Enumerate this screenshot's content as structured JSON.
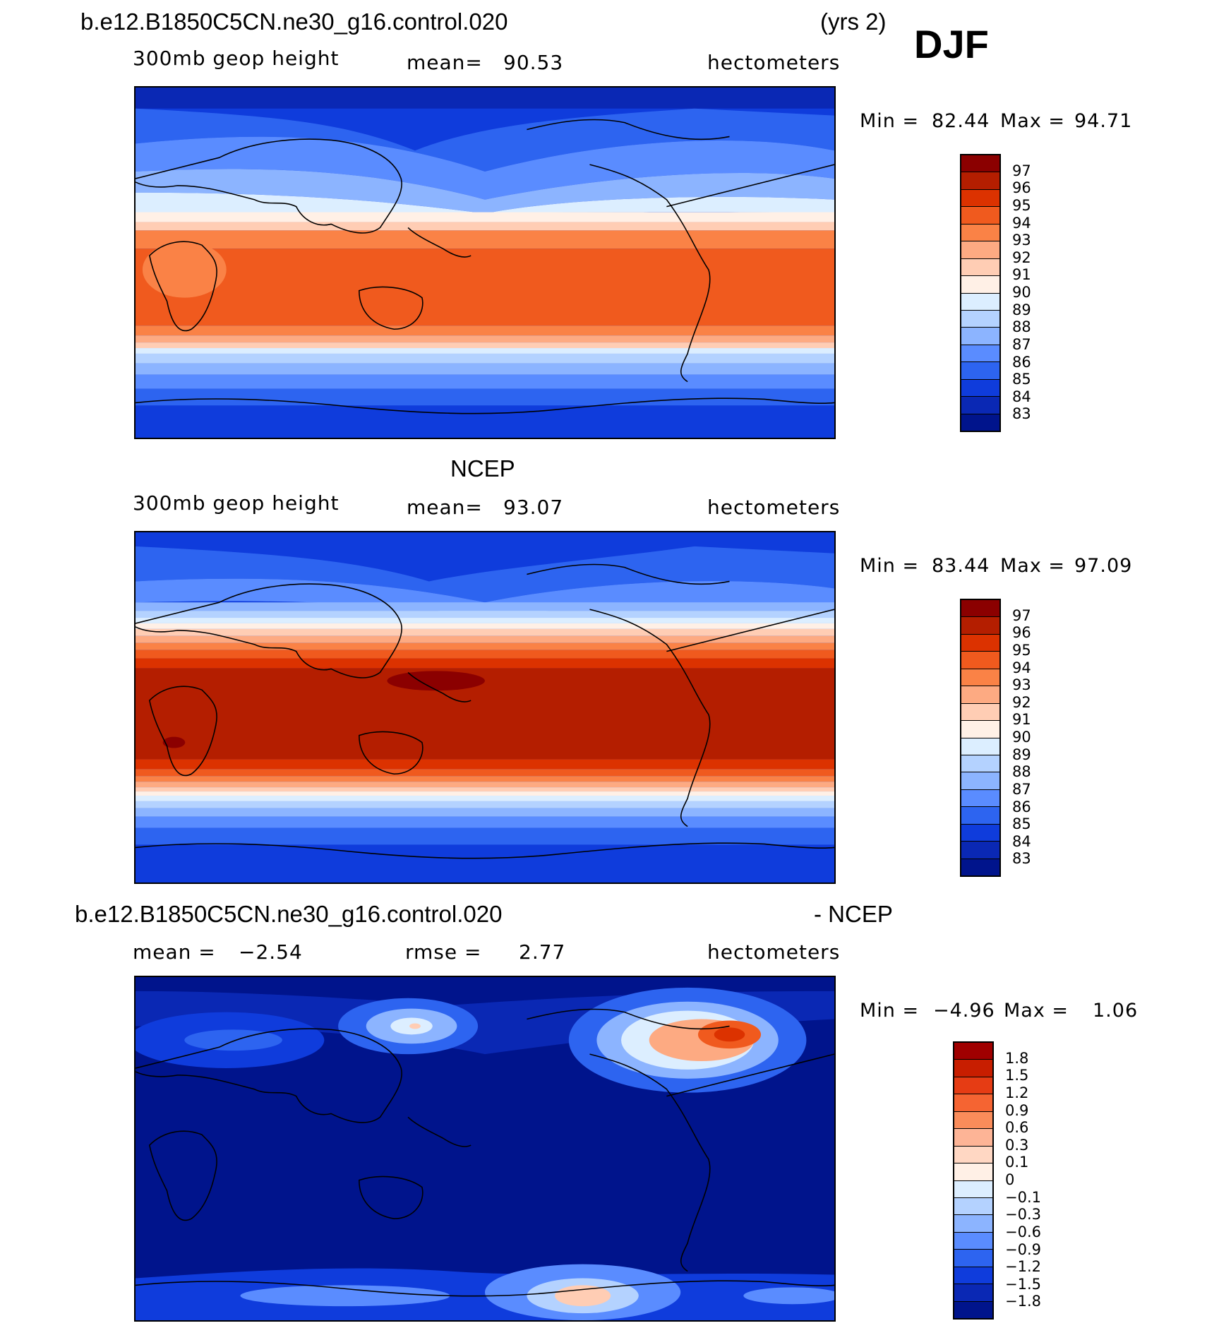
{
  "case_name": "b.e12.B1850C5CN.ne30_g16.control.020",
  "years_label": "(yrs 2)",
  "season": "DJF",
  "panels": [
    {
      "id": "model",
      "variable": "300mb geop height",
      "mean_label": "mean=",
      "mean_value": "90.53",
      "units": "hectometers",
      "min_label": "Min =",
      "min_value": "82.44",
      "max_label": "Max =",
      "max_value": "94.71"
    },
    {
      "id": "obs",
      "title": "NCEP",
      "variable": "300mb geop height",
      "mean_label": "mean=",
      "mean_value": "93.07",
      "units": "hectometers",
      "min_label": "Min =",
      "min_value": "83.44",
      "max_label": "Max =",
      "max_value": "97.09"
    },
    {
      "id": "diff",
      "title_left": "b.e12.B1850C5CN.ne30_g16.control.020",
      "title_right": "- NCEP",
      "mean_label": "mean =",
      "mean_value": "−2.54",
      "rmse_label": "rmse =",
      "rmse_value": "2.77",
      "units": "hectometers",
      "min_label": "Min =",
      "min_value": "−4.96",
      "max_label": "Max =",
      "max_value": "1.06"
    }
  ],
  "colorbars": {
    "height_levels": [
      "97",
      "96",
      "95",
      "94",
      "93",
      "92",
      "91",
      "90",
      "89",
      "88",
      "87",
      "86",
      "85",
      "84",
      "83"
    ],
    "height_colors": [
      "#8b0000",
      "#b41e00",
      "#dc3200",
      "#f05a1e",
      "#fa8246",
      "#fdaa82",
      "#ffcdb4",
      "#fff0e6",
      "#dceeff",
      "#b4d2ff",
      "#8cb4ff",
      "#5a8cff",
      "#2d64f0",
      "#0f3cdc",
      "#0a28b4",
      "#00148c"
    ],
    "diff_levels": [
      "1.8",
      "1.5",
      "1.2",
      "0.9",
      "0.6",
      "0.3",
      "0.1",
      "0",
      "−0.1",
      "−0.3",
      "−0.6",
      "−0.9",
      "−1.2",
      "−1.5",
      "−1.8"
    ],
    "diff_colors": [
      "#a00000",
      "#c81e00",
      "#e63c14",
      "#f56432",
      "#fa8c5a",
      "#fdb496",
      "#ffd7c3",
      "#fff0e6",
      "#dceeff",
      "#b4d2ff",
      "#8cb4ff",
      "#5a8cff",
      "#2d64f0",
      "#0f3cdc",
      "#0a28b4",
      "#00148c"
    ]
  }
}
